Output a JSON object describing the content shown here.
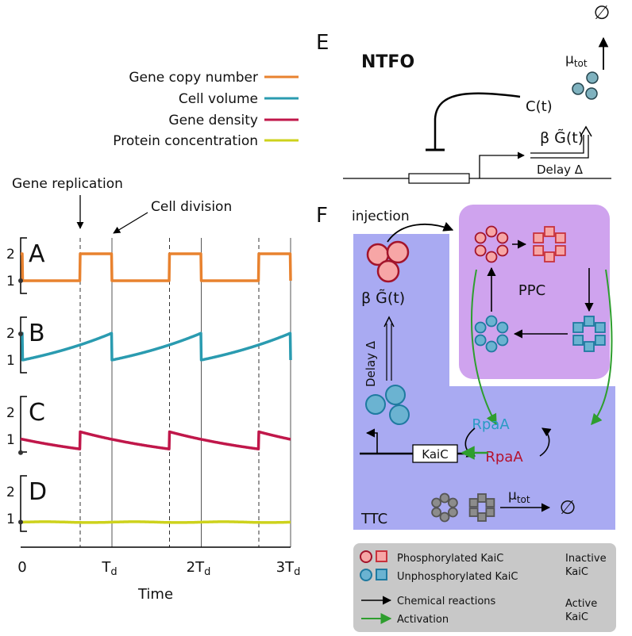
{
  "plot": {
    "legend": [
      "Gene copy number",
      "Cell volume",
      "Gene density",
      "Protein concentration"
    ],
    "annotations": [
      "Gene replication",
      "Cell division"
    ],
    "panels": [
      "A",
      "B",
      "C",
      "D"
    ],
    "yticks": [
      "2",
      "1"
    ],
    "xticks": [
      {
        "main": "0"
      },
      {
        "main": "T",
        "sub": "d"
      },
      {
        "main": "2T",
        "sub": "d"
      },
      {
        "main": "3T",
        "sub": "d"
      }
    ],
    "xlabel": "Time"
  },
  "ntfo": {
    "label": "E",
    "title": "NTFO",
    "null": "∅",
    "rate": {
      "main": "μ",
      "sub": "tot"
    },
    "protein": "C(t)",
    "production": "β G̃(t)",
    "delay": "Delay Δ"
  },
  "kai": {
    "label": "F",
    "injection": "injection",
    "production": "β G̃(t)",
    "delay": "Delay Δ",
    "ppc": "PPC",
    "rpaa": [
      "RpaA",
      "RpaA"
    ],
    "gene": "KaiC",
    "ttc": "TTC",
    "rate": {
      "main": "μ",
      "sub": "tot"
    },
    "null": "∅"
  },
  "legend": {
    "items": [
      "Phosphorylated KaiC",
      "Unphosphorylated KaiC",
      "Chemical reactions",
      "Activation"
    ],
    "inactive": [
      "Inactive",
      "KaiC"
    ],
    "active": [
      "Active",
      "KaiC"
    ]
  }
}
